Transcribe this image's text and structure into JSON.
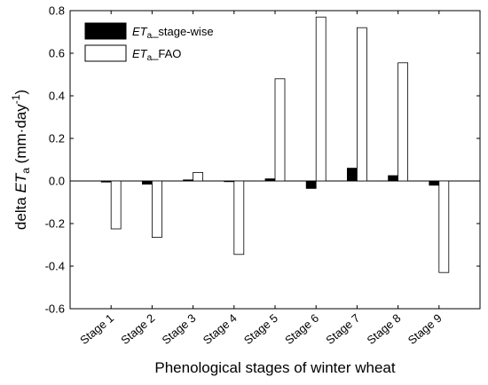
{
  "chart_data": {
    "type": "bar",
    "categories": [
      "Stage 1",
      "Stage 2",
      "Stage 3",
      "Stage 4",
      "Stage 5",
      "Stage 6",
      "Stage 7",
      "Stage 8",
      "Stage 9"
    ],
    "series": [
      {
        "name_prefix": "ET",
        "name_sub": "a",
        "name_suffix": "_stage-wise",
        "color": "#000000",
        "values": [
          -0.005,
          -0.015,
          0.005,
          0.0,
          0.01,
          -0.035,
          0.06,
          0.025,
          -0.02
        ]
      },
      {
        "name_prefix": "ET",
        "name_sub": "a",
        "name_suffix": "_FAO",
        "color": "#ffffff",
        "values": [
          -0.225,
          -0.265,
          0.04,
          -0.345,
          0.48,
          0.77,
          0.72,
          0.555,
          -0.43
        ]
      }
    ],
    "yticks": [
      "-0.6",
      "-0.4",
      "-0.2",
      "0.0",
      "0.2",
      "0.4",
      "0.6",
      "0.8"
    ],
    "ylim": [
      -0.6,
      0.8
    ],
    "xlabel": "Phenological stages of winter wheat",
    "ylabel": {
      "prefix": "delta ",
      "var": "ET",
      "sub": "a",
      "unit_open": " (mm·day",
      "unit_sup": "-1",
      "unit_close": ")"
    },
    "legend_position": "top-left",
    "grid": false
  }
}
